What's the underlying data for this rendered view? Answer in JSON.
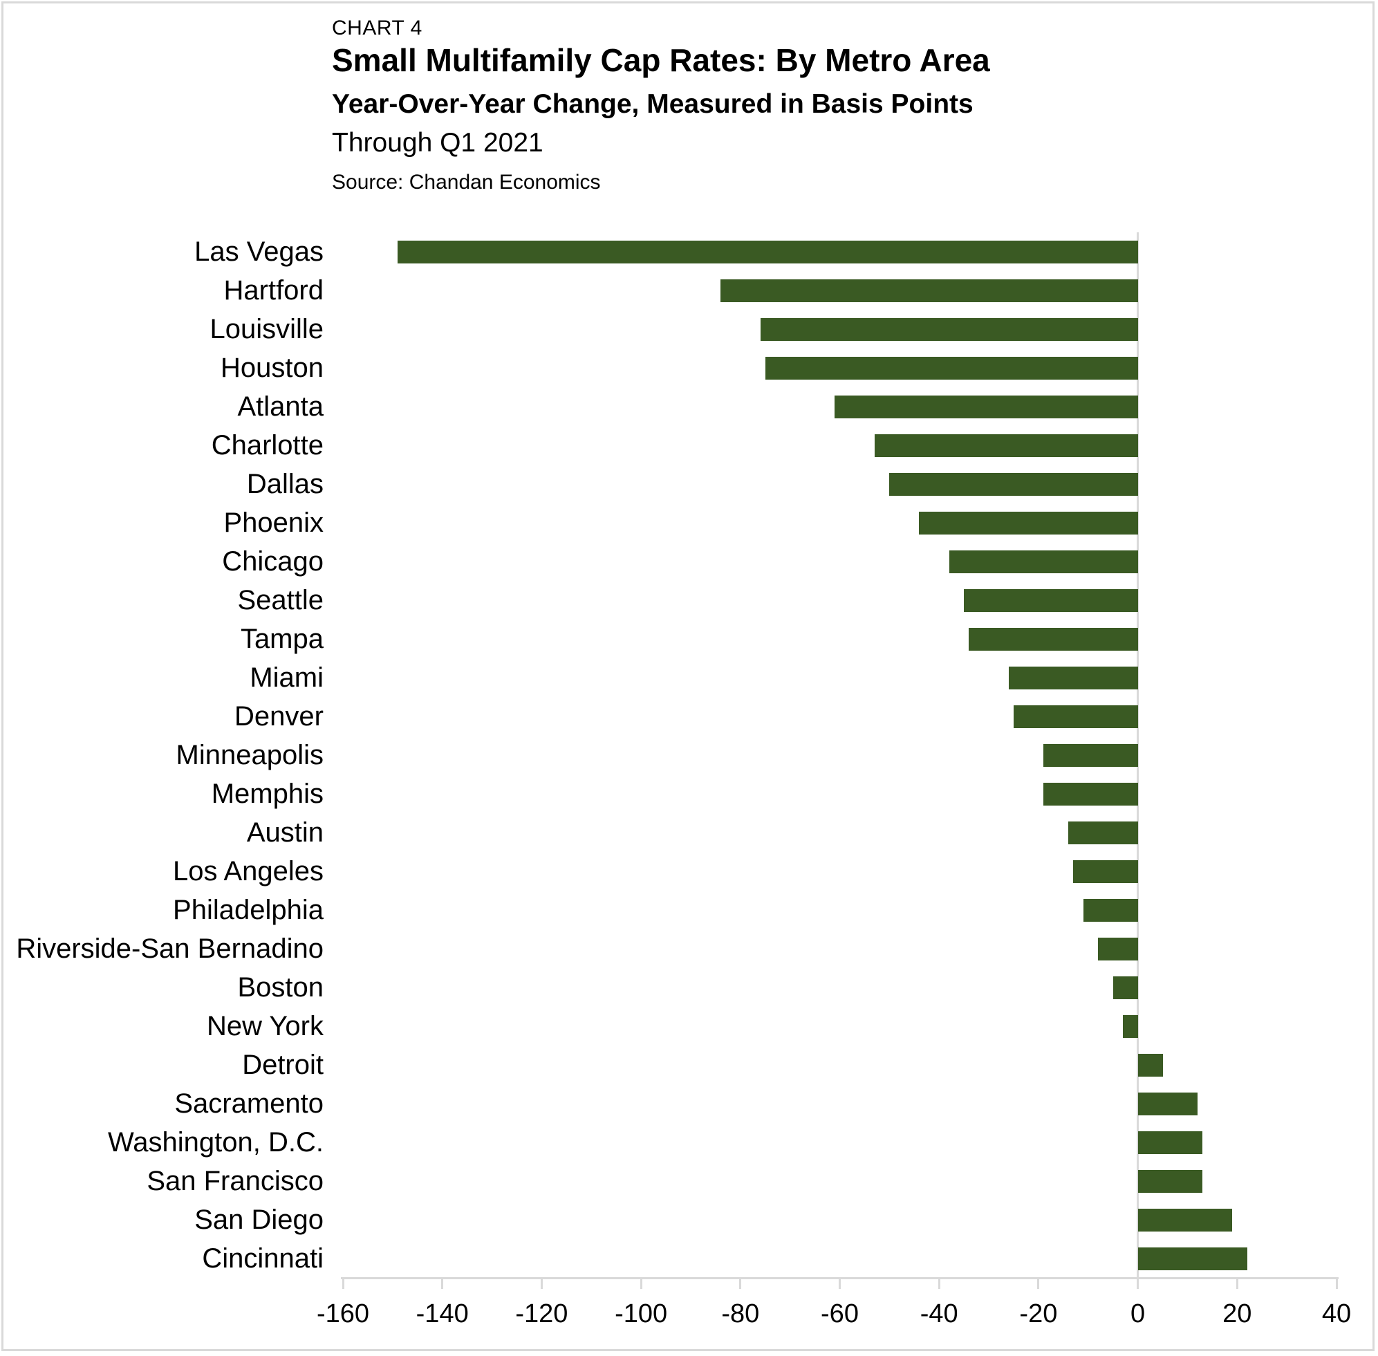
{
  "header": {
    "chart_label": "CHART 4",
    "title": "Small Multifamily Cap Rates: By Metro Area",
    "subtitle": "Year-Over-Year Change, Measured in Basis Points",
    "period": "Through Q1 2021",
    "source": "Source: Chandan Economics"
  },
  "chart_data": {
    "type": "bar",
    "orientation": "horizontal",
    "title": "Small Multifamily Cap Rates: By Metro Area",
    "subtitle": "Year-Over-Year Change, Measured in Basis Points",
    "period": "Through Q1 2021",
    "source": "Source: Chandan Economics",
    "unit": "basis points",
    "categories": [
      "Las Vegas",
      "Hartford",
      "Louisville",
      "Houston",
      "Atlanta",
      "Charlotte",
      "Dallas",
      "Phoenix",
      "Chicago",
      "Seattle",
      "Tampa",
      "Miami",
      "Denver",
      "Minneapolis",
      "Memphis",
      "Austin",
      "Los Angeles",
      "Philadelphia",
      "Riverside-San Bernadino",
      "Boston",
      "New York",
      "Detroit",
      "Sacramento",
      "Washington, D.C.",
      "San Francisco",
      "San Diego",
      "Cincinnati"
    ],
    "values": [
      -149,
      -84,
      -76,
      -75,
      -61,
      -53,
      -50,
      -44,
      -38,
      -35,
      -34,
      -26,
      -25,
      -19,
      -19,
      -14,
      -13,
      -11,
      -8,
      -5,
      -3,
      5,
      12,
      13,
      13,
      19,
      22
    ],
    "xlim": [
      -160,
      40
    ],
    "tick_step": 20,
    "tick_labels": [
      "-160",
      "-140",
      "-120",
      "-100",
      "-80",
      "-60",
      "-40",
      "-20",
      "0",
      "20",
      "40"
    ],
    "grid": false,
    "legend": "none",
    "bar_color": "#3a5a23",
    "axis_color": "#d9d9d9",
    "text_color": "#000000"
  }
}
